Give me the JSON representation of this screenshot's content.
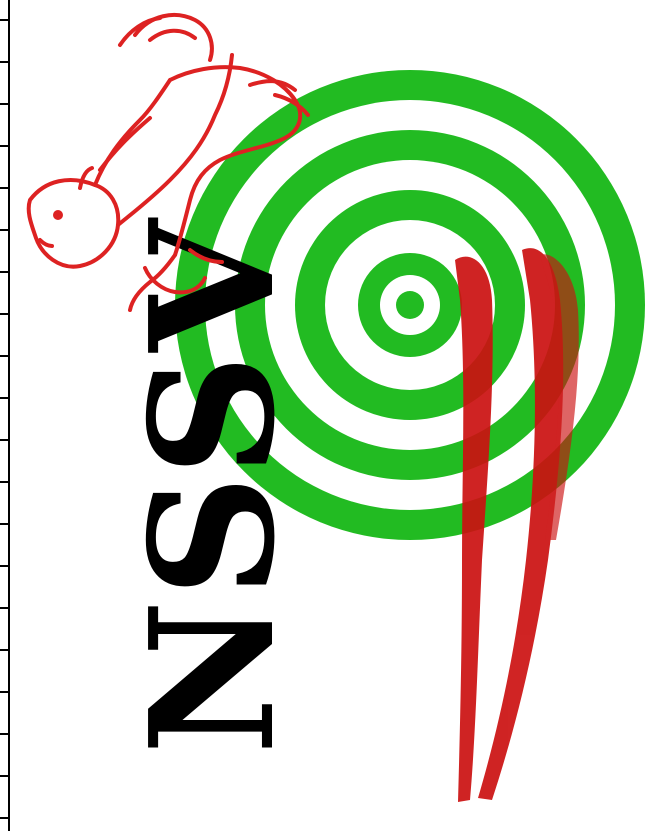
{
  "logo": {
    "text": "NSSV",
    "colors": {
      "target_ring": "#22bb22",
      "target_background": "#ffffff",
      "horse_outline": "#dd2222",
      "brush_stroke": "#cc1111",
      "lettering": "#000000",
      "ruler_lines": "#000000"
    },
    "icons": [
      "horse-icon",
      "target-icon",
      "brush-stroke-icon"
    ]
  }
}
